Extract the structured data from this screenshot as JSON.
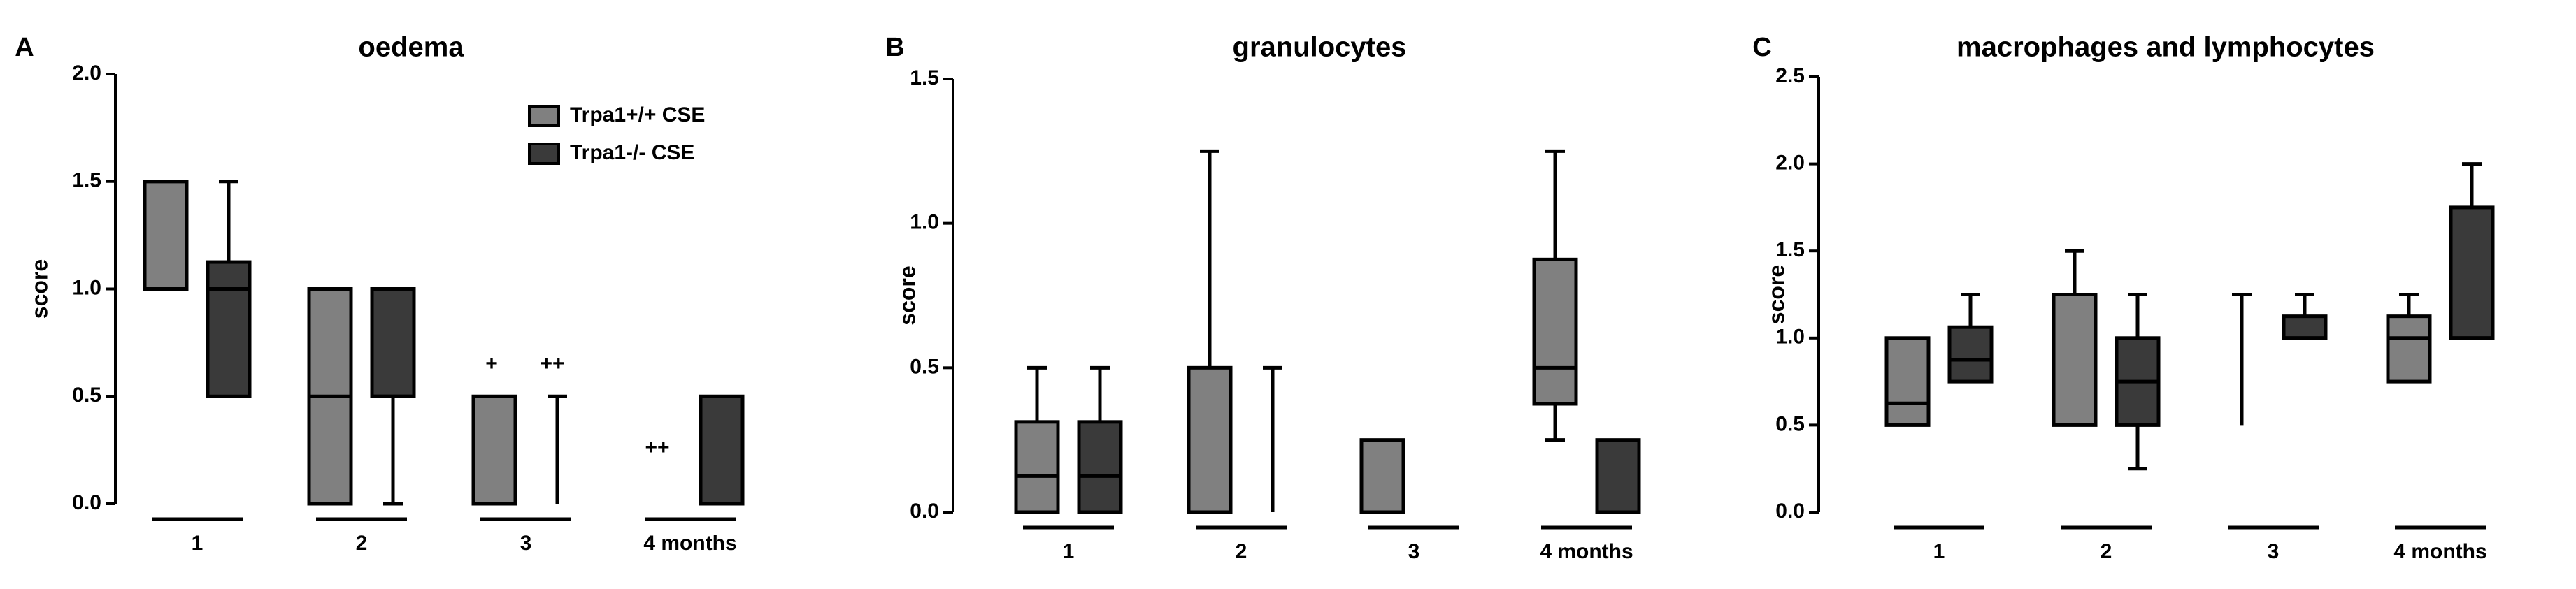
{
  "chart_data": [
    {
      "type": "box",
      "panel_label": "A",
      "title": "oedema",
      "y_label": "score",
      "categories": [
        "1",
        "2",
        "3",
        "4 months"
      ],
      "series": [
        {
          "name": "Trpa1+/+ CSE",
          "color": "#808080",
          "min": [
            1,
            0,
            0,
            0
          ],
          "q1": [
            1,
            0,
            0,
            0
          ],
          "median": [
            1.5,
            0.5,
            0,
            0
          ],
          "q3": [
            1.5,
            1,
            0.5,
            0
          ],
          "max": [
            1.5,
            1,
            0.5,
            0
          ]
        },
        {
          "name": "Trpa1-/- CSE",
          "color": "#3a3a3a",
          "min": [
            0.5,
            0,
            0,
            0
          ],
          "q1": [
            0.5,
            0.5,
            0,
            0
          ],
          "median": [
            1,
            0.5,
            0,
            0
          ],
          "q3": [
            1.125,
            1,
            0,
            0.5
          ],
          "max": [
            1.5,
            1,
            0.5,
            0.5
          ]
        }
      ],
      "ylim": [
        0,
        2
      ],
      "yticks": [
        {
          "value": 0,
          "label": "0.0"
        },
        0.5,
        {
          "value": 1,
          "label": "1.0"
        },
        1.5,
        {
          "value": 2,
          "label": "2.0"
        }
      ],
      "legend": "upper right",
      "annotations": [
        {
          "text": "+"
        },
        {
          "text": "++"
        },
        {
          "text": "++"
        }
      ]
    },
    {
      "type": "box",
      "panel_label": "B",
      "title": "granulocytes",
      "y_label": "score",
      "categories": [
        "1",
        "2",
        "3",
        "4 months"
      ],
      "series": [
        {
          "color": "#808080",
          "min": [
            0,
            0,
            0,
            0.25
          ],
          "q1": [
            0,
            0,
            0,
            0.375
          ],
          "median": [
            0.125,
            0,
            0,
            0.5
          ],
          "q3": [
            0.3125,
            0.5,
            0.25,
            0.875
          ],
          "max": [
            0.5,
            1.25,
            0.25,
            1.25
          ]
        },
        {
          "color": "#3a3a3a",
          "min": [
            0,
            0,
            0,
            0
          ],
          "q1": [
            0,
            0,
            0,
            0
          ],
          "median": [
            0.125,
            0,
            0,
            0
          ],
          "q3": [
            0.3125,
            0,
            0,
            0.25
          ],
          "max": [
            0.5,
            0.5,
            0,
            0.25
          ]
        }
      ],
      "ylim": [
        0,
        1.5
      ],
      "yticks": [
        {
          "value": 0,
          "label": "0.0"
        },
        0.5,
        {
          "value": 1,
          "label": "1.0"
        },
        1.5
      ]
    },
    {
      "type": "box",
      "panel_label": "C",
      "title": "macrophages and lymphocytes",
      "y_label": "score",
      "categories": [
        "1",
        "2",
        "3",
        "4 months"
      ],
      "series": [
        {
          "color": "#808080",
          "min": [
            0.5,
            0.5,
            0.5,
            0.75
          ],
          "q1": [
            0.5,
            0.5,
            0.5,
            0.75
          ],
          "median": [
            0.625,
            1.25,
            0.5,
            1
          ],
          "q3": [
            1,
            1.25,
            0.5,
            1.125
          ],
          "max": [
            1,
            1.5,
            1.25,
            1.25
          ]
        },
        {
          "color": "#3a3a3a",
          "min": [
            0.75,
            0.25,
            1,
            1
          ],
          "q1": [
            0.75,
            0.5,
            1,
            1
          ],
          "median": [
            0.875,
            0.75,
            1,
            1
          ],
          "q3": [
            1.0625,
            1,
            1.125,
            1.75
          ],
          "max": [
            1.25,
            1.25,
            1.25,
            2
          ]
        }
      ],
      "ylim": [
        0,
        2.5
      ],
      "yticks": [
        {
          "value": 0,
          "label": "0.0"
        },
        0.5,
        {
          "value": 1,
          "label": "1.0"
        },
        1.5,
        {
          "value": 2,
          "label": "2.0"
        },
        2.5
      ]
    }
  ]
}
